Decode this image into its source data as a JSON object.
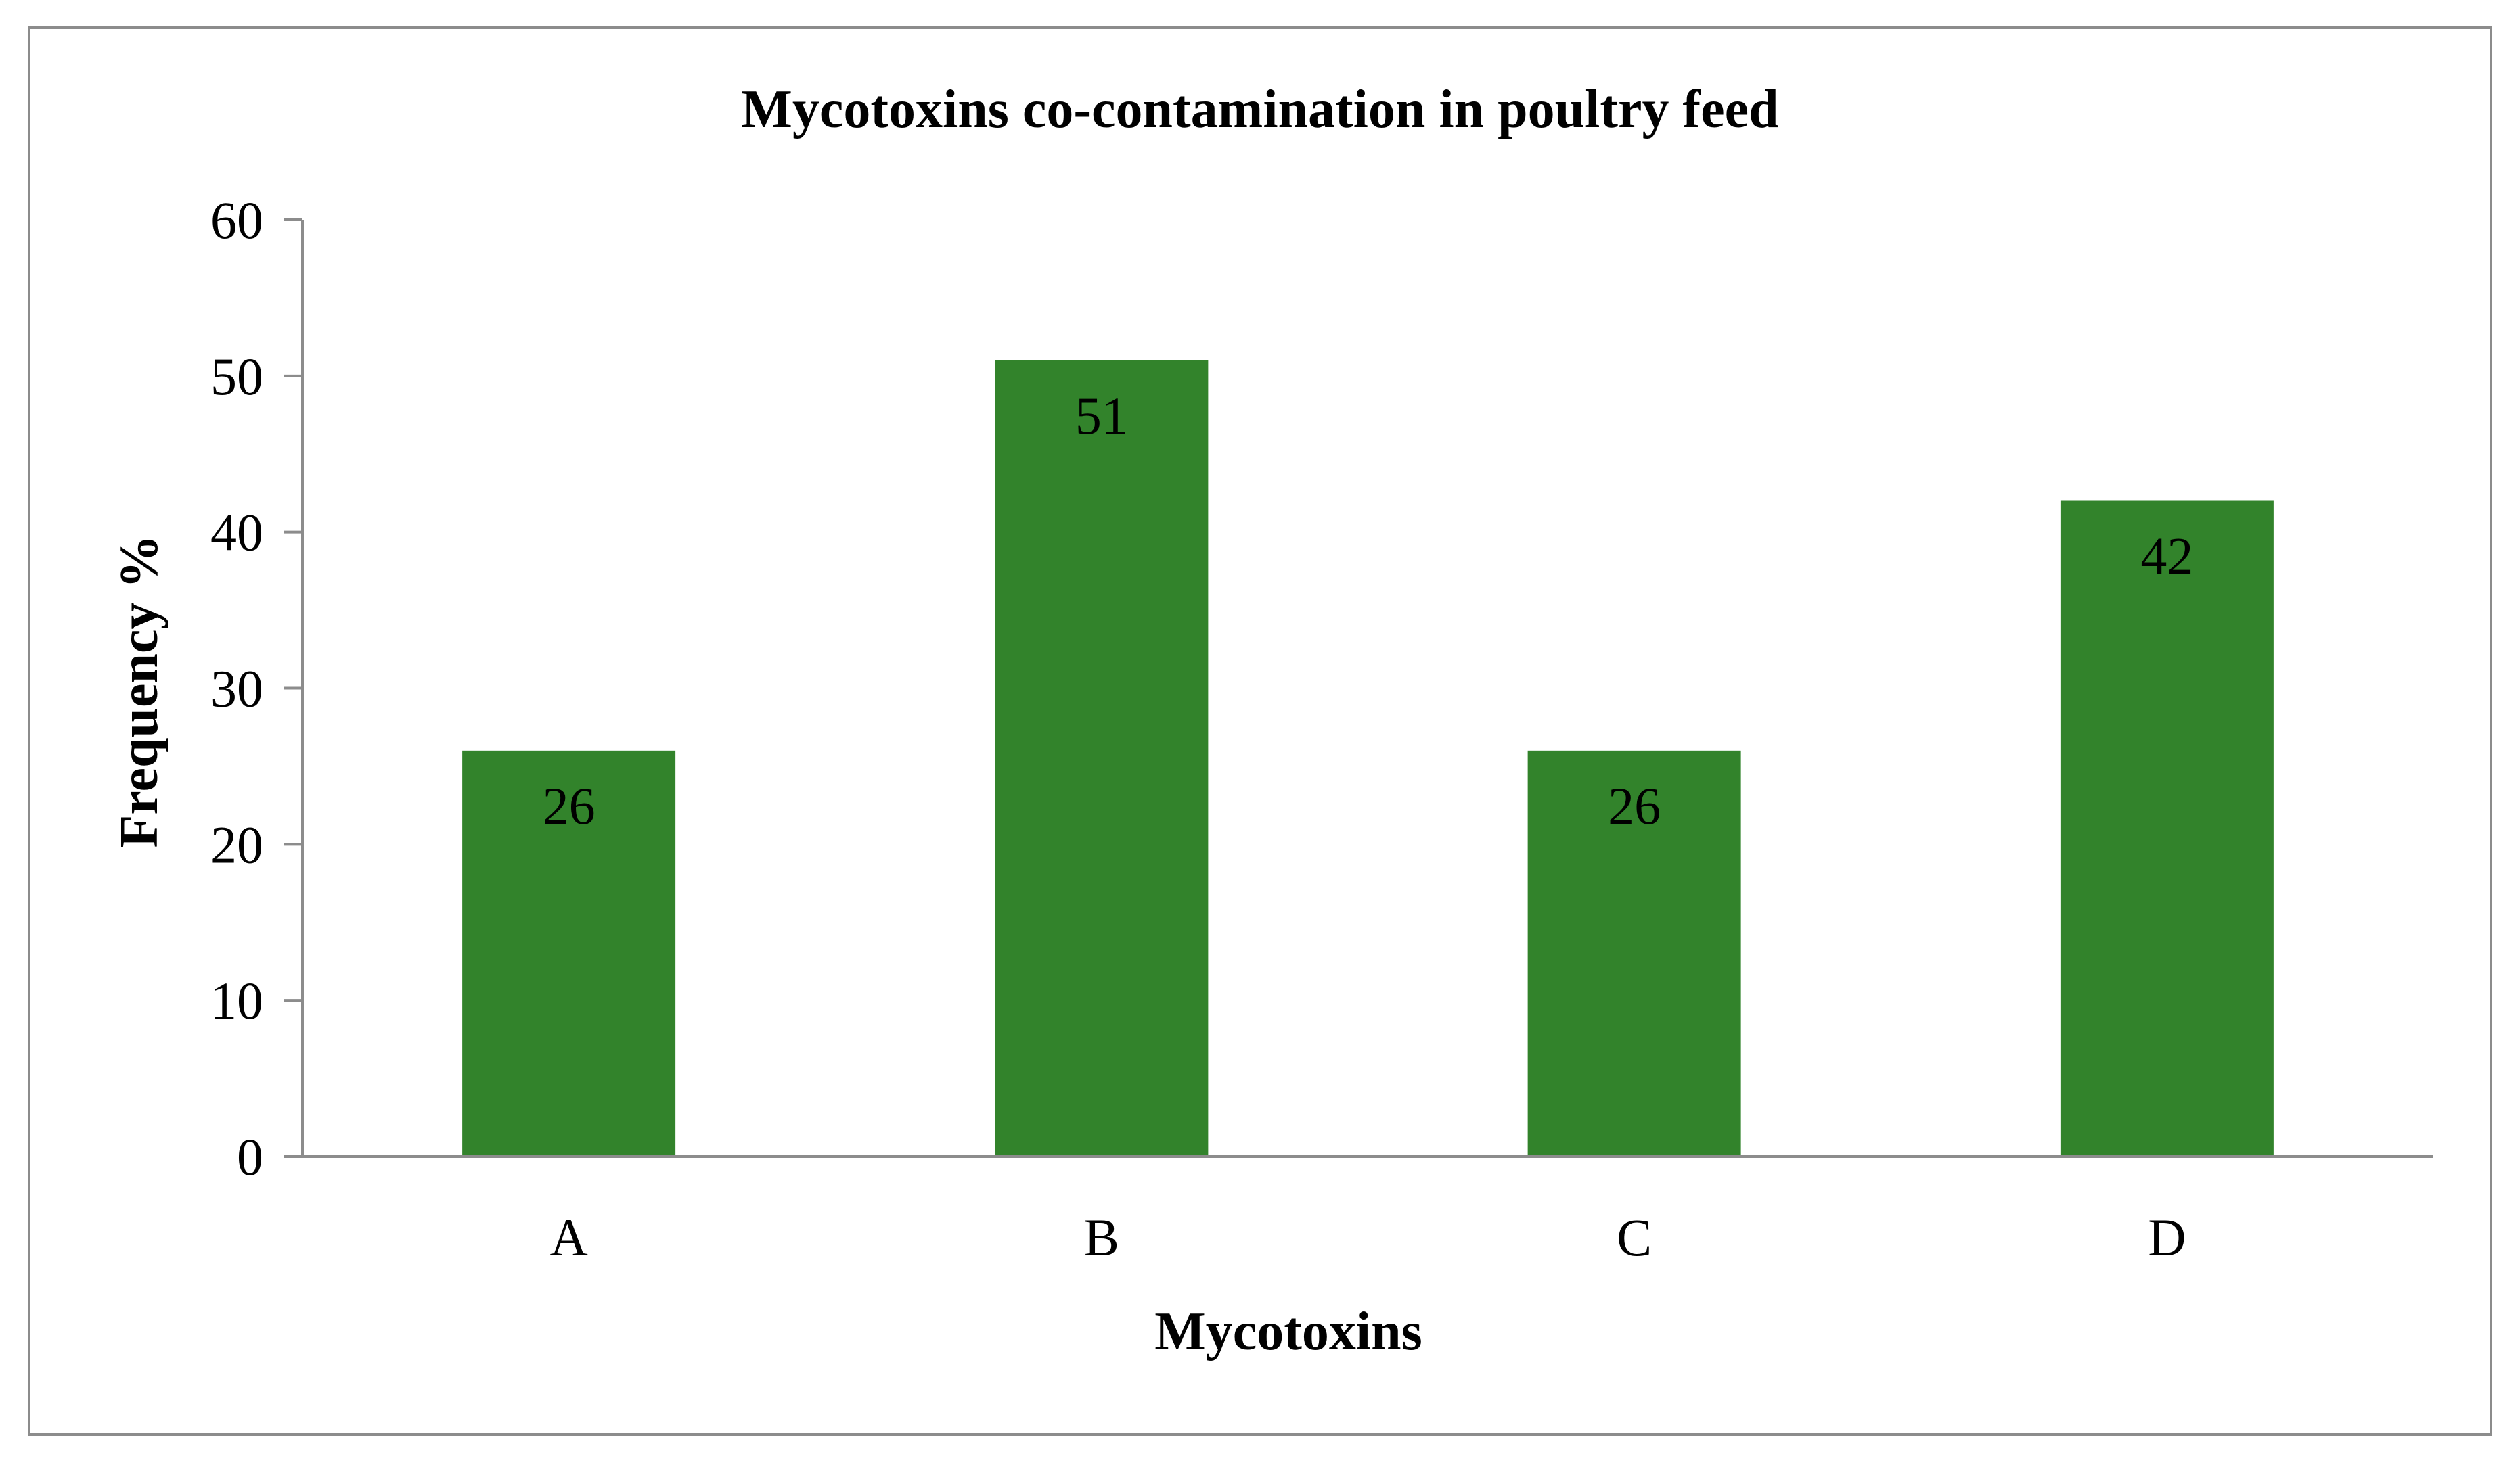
{
  "chart_data": {
    "type": "bar",
    "title": "Mycotoxins co-contamination  in poultry feed",
    "xlabel": "Mycotoxins",
    "ylabel": "Frequency %",
    "categories": [
      "A",
      "B",
      "C",
      "D"
    ],
    "values": [
      26,
      51,
      26,
      42
    ],
    "data_labels": [
      "26",
      "51",
      "26",
      "42"
    ],
    "ylim": [
      0,
      60
    ],
    "yticks": [
      "0",
      "10",
      "20",
      "30",
      "40",
      "50",
      "60"
    ],
    "grid": false,
    "legend": "none",
    "colors": {
      "bar": "#32832B",
      "axis": "#8C8C8C",
      "frame": "#8C8C8C"
    }
  }
}
